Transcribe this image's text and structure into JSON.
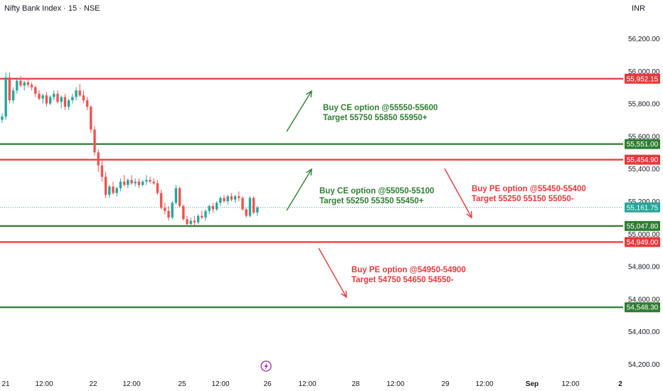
{
  "header": {
    "title": "Nifty Bank Index · 15 · NSE",
    "currency": "INR"
  },
  "chart_data": {
    "type": "candlestick",
    "y_axis": {
      "ticks": [
        "56,200.00",
        "56,000.00",
        "55,800.00",
        "55,600.00",
        "55,400.00",
        "55,200.00",
        "55,000.00",
        "54,800.00",
        "54,600.00",
        "54,400.00",
        "54,200.00"
      ]
    },
    "x_axis": {
      "ticks": [
        "21",
        "12:00",
        "22",
        "12:00",
        "25",
        "12:00",
        "26",
        "12:00",
        "28",
        "12:00",
        "29",
        "12:00",
        "Sep",
        "12:00",
        "2"
      ]
    },
    "levels": [
      {
        "value": 55952.15,
        "label": "55,952.15",
        "color": "#e5383b"
      },
      {
        "value": 55551.0,
        "label": "55,551.00",
        "color": "#2e7d32"
      },
      {
        "value": 55454.9,
        "label": "55,454.90",
        "color": "#e5383b"
      },
      {
        "value": 55047.8,
        "label": "55,047.80",
        "color": "#2e7d32"
      },
      {
        "value": 54949.0,
        "label": "54,949.00",
        "color": "#e5383b"
      },
      {
        "value": 54548.3,
        "label": "54,548.30",
        "color": "#2e7d32"
      }
    ],
    "last_price": {
      "value": 55161.75,
      "label": "55,161.75",
      "color": "#26a69a"
    },
    "candles": [
      [
        55700,
        55740,
        55680,
        55720
      ],
      [
        55720,
        55990,
        55700,
        55960
      ],
      [
        55960,
        55990,
        55800,
        55820
      ],
      [
        55820,
        55900,
        55800,
        55880
      ],
      [
        55880,
        55960,
        55860,
        55940
      ],
      [
        55940,
        55970,
        55900,
        55910
      ],
      [
        55910,
        55940,
        55880,
        55930
      ],
      [
        55930,
        55950,
        55900,
        55915
      ],
      [
        55915,
        55930,
        55880,
        55900
      ],
      [
        55900,
        55910,
        55840,
        55860
      ],
      [
        55860,
        55880,
        55820,
        55830
      ],
      [
        55830,
        55860,
        55800,
        55850
      ],
      [
        55850,
        55870,
        55780,
        55800
      ],
      [
        55800,
        55850,
        55790,
        55840
      ],
      [
        55840,
        55880,
        55820,
        55860
      ],
      [
        55860,
        55880,
        55800,
        55810
      ],
      [
        55810,
        55850,
        55770,
        55840
      ],
      [
        55840,
        55860,
        55760,
        55780
      ],
      [
        55780,
        55830,
        55760,
        55820
      ],
      [
        55820,
        55860,
        55800,
        55840
      ],
      [
        55840,
        55900,
        55820,
        55880
      ],
      [
        55880,
        55920,
        55840,
        55850
      ],
      [
        55850,
        55880,
        55800,
        55820
      ],
      [
        55820,
        55840,
        55760,
        55780
      ],
      [
        55780,
        55790,
        55620,
        55640
      ],
      [
        55640,
        55660,
        55480,
        55500
      ],
      [
        55500,
        55520,
        55380,
        55420
      ],
      [
        55420,
        55450,
        55320,
        55350
      ],
      [
        55350,
        55380,
        55220,
        55240
      ],
      [
        55240,
        55300,
        55220,
        55290
      ],
      [
        55290,
        55320,
        55240,
        55250
      ],
      [
        55250,
        55290,
        55230,
        55280
      ],
      [
        55280,
        55340,
        55260,
        55320
      ],
      [
        55320,
        55360,
        55290,
        55300
      ],
      [
        55300,
        55340,
        55280,
        55330
      ],
      [
        55330,
        55360,
        55300,
        55310
      ],
      [
        55310,
        55340,
        55290,
        55320
      ],
      [
        55320,
        55340,
        55280,
        55300
      ],
      [
        55300,
        55330,
        55290,
        55320
      ],
      [
        55320,
        55360,
        55300,
        55330
      ],
      [
        55330,
        55350,
        55310,
        55320
      ],
      [
        55320,
        55340,
        55300,
        55310
      ],
      [
        55310,
        55330,
        55240,
        55250
      ],
      [
        55250,
        55270,
        55150,
        55160
      ],
      [
        55160,
        55190,
        55120,
        55140
      ],
      [
        55140,
        55170,
        55080,
        55100
      ],
      [
        55100,
        55200,
        55090,
        55190
      ],
      [
        55190,
        55300,
        55180,
        55280
      ],
      [
        55280,
        55290,
        55160,
        55170
      ],
      [
        55170,
        55180,
        55080,
        55090
      ],
      [
        55090,
        55110,
        55050,
        55060
      ],
      [
        55060,
        55100,
        55040,
        55080
      ],
      [
        55080,
        55110,
        55050,
        55070
      ],
      [
        55070,
        55120,
        55060,
        55110
      ],
      [
        55110,
        55140,
        55090,
        55100
      ],
      [
        55100,
        55150,
        55080,
        55140
      ],
      [
        55140,
        55180,
        55120,
        55170
      ],
      [
        55170,
        55190,
        55130,
        55150
      ],
      [
        55150,
        55200,
        55140,
        55190
      ],
      [
        55190,
        55230,
        55170,
        55220
      ],
      [
        55220,
        55240,
        55190,
        55200
      ],
      [
        55200,
        55240,
        55180,
        55230
      ],
      [
        55230,
        55250,
        55200,
        55210
      ],
      [
        55210,
        55240,
        55190,
        55230
      ],
      [
        55230,
        55260,
        55200,
        55220
      ],
      [
        55220,
        55230,
        55140,
        55150
      ],
      [
        55150,
        55160,
        55100,
        55110
      ],
      [
        55110,
        55230,
        55100,
        55220
      ],
      [
        55220,
        55230,
        55120,
        55130
      ],
      [
        55130,
        55170,
        55110,
        55160
      ]
    ]
  },
  "annotations": [
    {
      "line1": "Buy CE option @55550-55600",
      "line2": "Target 55750 55850 55950+",
      "color": "green"
    },
    {
      "line1": "Buy CE option @55050-55100",
      "line2": "Target 55250 55350 55450+",
      "color": "green"
    },
    {
      "line1": "Buy PE option @55450-55400",
      "line2": "Target 55250 55150 55050-",
      "color": "red"
    },
    {
      "line1": "Buy PE option @54950-54900",
      "line2": "Target 54750 54650 54550-",
      "color": "red"
    }
  ],
  "marker": {
    "icon": "lightning-icon",
    "color": "#9c27b0"
  }
}
